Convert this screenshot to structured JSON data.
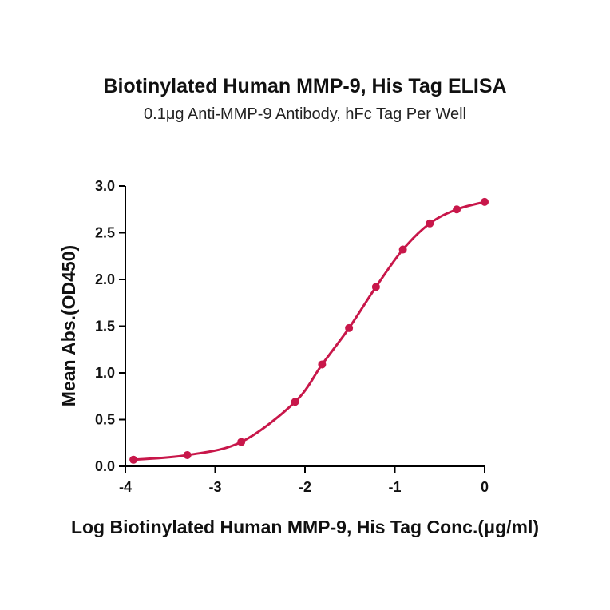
{
  "chart_data": {
    "type": "scatter",
    "title": "Biotinylated Human MMP-9, His Tag ELISA",
    "subtitle": "0.1μg Anti-MMP-9 Antibody, hFc Tag Per Well",
    "xlabel": "Log Biotinylated Human MMP-9, His Tag Conc.(μg/ml)",
    "ylabel": "Mean Abs.(OD450)",
    "xlim": [
      -4,
      0
    ],
    "ylim": [
      0,
      3
    ],
    "x_ticks": [
      "-4",
      "-3",
      "-2",
      "-1",
      "0"
    ],
    "y_ticks": [
      "0.0",
      "0.5",
      "1.0",
      "1.5",
      "2.0",
      "2.5",
      "3.0"
    ],
    "grid": false,
    "color": "#c8174a",
    "series": [
      {
        "x": [
          -3.91,
          -3.31,
          -2.71,
          -2.11,
          -1.81,
          -1.51,
          -1.21,
          -0.91,
          -0.61,
          -0.31,
          0.0
        ],
        "y": [
          0.07,
          0.12,
          0.26,
          0.69,
          1.09,
          1.48,
          1.92,
          2.32,
          2.6,
          2.75,
          2.83
        ],
        "fit": "4PL"
      }
    ]
  }
}
